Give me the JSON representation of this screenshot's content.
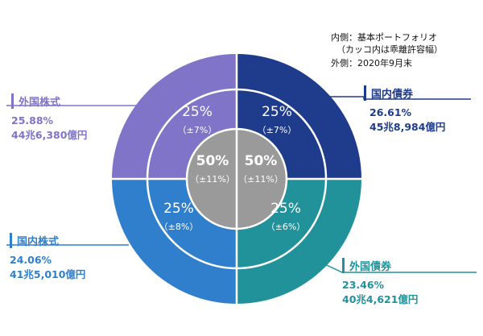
{
  "note": {
    "line1": "内側：基本ポートフォリオ",
    "line2": "（カッコ内は乖離許容幅）",
    "line3": "外側：2020年9月末"
  },
  "chart_data": {
    "type": "pie",
    "title": "",
    "inner": {
      "label": "内側：基本ポートフォリオ",
      "slices": [
        {
          "name": "国内債券",
          "value": 25,
          "label": "25%",
          "band": "（±7%）",
          "color": "#1f3c8c"
        },
        {
          "name": "外国債券",
          "value": 25,
          "label": "25%",
          "band": "（±6%）",
          "color": "#21929a"
        },
        {
          "name": "国内株式",
          "value": 25,
          "label": "25%",
          "band": "（±8%）",
          "color": "#2f7fcc"
        },
        {
          "name": "外国株式",
          "value": 25,
          "label": "25%",
          "band": "（±7%）",
          "color": "#7f74c7"
        }
      ]
    },
    "center": {
      "bonds": {
        "value": 50,
        "label": "50%",
        "band": "（±11%）"
      },
      "stocks": {
        "value": 50,
        "label": "50%",
        "band": "（±11%）"
      }
    },
    "outer": {
      "label": "外側：2020年9月末",
      "slices": [
        {
          "name": "国内債券",
          "value": 26.61,
          "pct": "26.61%",
          "amount": "45兆8,984億円",
          "color": "#1f3c8c"
        },
        {
          "name": "外国債券",
          "value": 23.46,
          "pct": "23.46%",
          "amount": "40兆4,621億円",
          "color": "#21929a"
        },
        {
          "name": "国内株式",
          "value": 24.06,
          "pct": "24.06%",
          "amount": "41兆5,010億円",
          "color": "#2f7fcc"
        },
        {
          "name": "外国株式",
          "value": 25.88,
          "pct": "25.88%",
          "amount": "44兆6,380億円",
          "color": "#7f74c7"
        }
      ]
    },
    "legend": "none",
    "colors": {
      "core": "#9a9a9a",
      "divider": "#ffffff",
      "text_light": "#ffffff"
    }
  }
}
